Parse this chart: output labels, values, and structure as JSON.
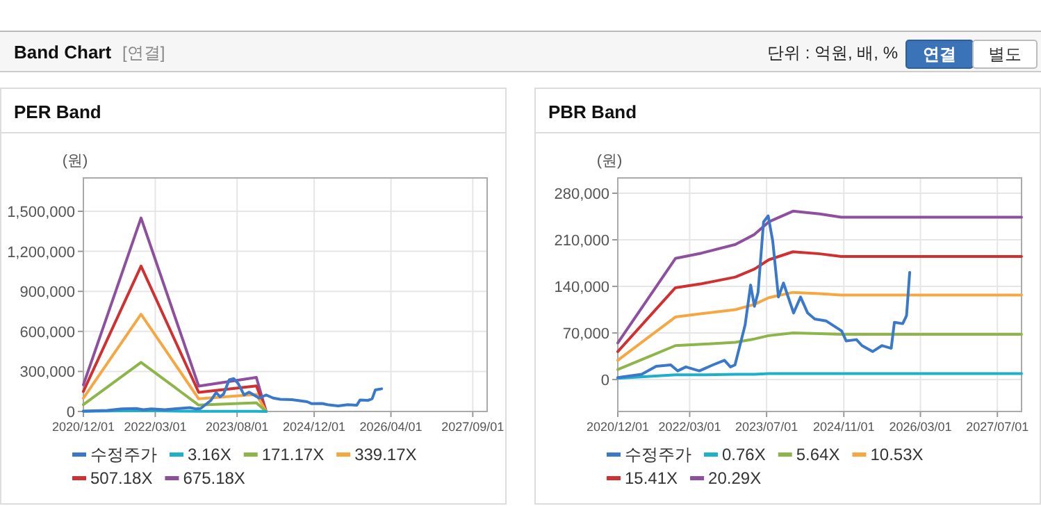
{
  "chart_data": [
    {
      "type": "other",
      "title": "Band Chart",
      "annotations": [
        "[연결]",
        "단위 : 억원, 배, %",
        "연결",
        "별도"
      ]
    },
    {
      "type": "line",
      "title": "PER Band",
      "ylabel": "(원)",
      "grid": true,
      "legend": "bottom",
      "line_style": "solid",
      "xlim": [
        "2020-12-01",
        "2027-12-01"
      ],
      "xticks": [
        {
          "value": "2020-12-01",
          "label": "2020/12/01"
        },
        {
          "value": "2022-03-01",
          "label": "2022/03/01"
        },
        {
          "value": "2023-08-01",
          "label": "2023/08/01"
        },
        {
          "value": "2024-12-01",
          "label": "2024/12/01"
        },
        {
          "value": "2026-04-01",
          "label": "2026/04/01"
        },
        {
          "value": "2027-09-01",
          "label": "2027/09/01"
        }
      ],
      "ylim": [
        0,
        1750000
      ],
      "yticks": [
        0,
        {
          "value": 300000,
          "label": "300,000"
        },
        {
          "value": 600000,
          "label": "600,000"
        },
        {
          "value": 900000,
          "label": "900,000"
        },
        {
          "value": 1200000,
          "label": "1,200,000"
        },
        {
          "value": 1500000,
          "label": "1,500,000"
        }
      ],
      "x": [
        "2020-12-01",
        "2021-12-01",
        "2022-12-01",
        "2023-12-01",
        "2024-02-01"
      ],
      "series": [
        {
          "name": "수정주가",
          "color": "#3a78c9",
          "x": [
            "2020-12-01",
            "2021-05-01",
            "2021-08-01",
            "2021-11-01",
            "2021-12-15",
            "2022-02-05",
            "2022-05-01",
            "2022-07-26",
            "2022-10-07",
            "2022-11-14",
            "2022-12-13",
            "2023-02-15",
            "2023-03-22",
            "2023-04-15",
            "2023-05-08",
            "2023-06-12",
            "2023-07-11",
            "2023-08-09",
            "2023-09-14",
            "2023-10-16",
            "2023-12-19",
            "2024-02-01",
            "2024-03-17",
            "2024-05-01",
            "2024-07-13",
            "2024-10-18",
            "2024-11-16",
            "2025-01-20",
            "2025-02-24",
            "2025-05-02",
            "2025-06-30",
            "2025-08-28",
            "2025-09-17",
            "2025-11-09",
            "2025-12-03",
            "2025-12-23",
            "2026-02-01"
          ],
          "values": [
            3000,
            8000,
            20000,
            22000,
            13000,
            19000,
            13000,
            22000,
            29000,
            19000,
            22000,
            82000,
            142000,
            110000,
            131000,
            237000,
            246000,
            208000,
            124000,
            145000,
            100000,
            124000,
            100000,
            91000,
            88000,
            73000,
            58000,
            60000,
            51000,
            42000,
            51000,
            47000,
            86000,
            84000,
            96000,
            161000,
            170000
          ]
        },
        {
          "name": "3.16X",
          "color": "#1fb0c9",
          "values": [
            900,
            6800,
            900,
            1200,
            0
          ]
        },
        {
          "name": "171.17X",
          "color": "#8db54a",
          "values": [
            51000,
            368000,
            48000,
            65000,
            0
          ]
        },
        {
          "name": "339.17X",
          "color": "#f5a742",
          "values": [
            100000,
            729000,
            95000,
            128000,
            0
          ]
        },
        {
          "name": "507.18X",
          "color": "#d03030",
          "values": [
            150000,
            1089000,
            143000,
            192000,
            0
          ]
        },
        {
          "name": "675.18X",
          "color": "#8e4f9e",
          "values": [
            200000,
            1450000,
            190000,
            255000,
            0
          ]
        }
      ]
    },
    {
      "type": "line",
      "title": "PBR Band",
      "ylabel": "(원)",
      "grid": true,
      "legend": "bottom",
      "line_style": "solid",
      "xlim": [
        "2020-12-01",
        "2027-12-01"
      ],
      "xticks": [
        {
          "value": "2020-12-01",
          "label": "2020/12/01"
        },
        {
          "value": "2022-03-01",
          "label": "2022/03/01"
        },
        {
          "value": "2023-07-01",
          "label": "2023/07/01"
        },
        {
          "value": "2024-11-01",
          "label": "2024/11/01"
        },
        {
          "value": "2026-03-01",
          "label": "2026/03/01"
        },
        {
          "value": "2027-07-01",
          "label": "2027/07/01"
        }
      ],
      "ylim": [
        -48000,
        303000
      ],
      "yticks": [
        0,
        {
          "value": 70000,
          "label": "70,000"
        },
        {
          "value": 140000,
          "label": "140,000"
        },
        {
          "value": 210000,
          "label": "210,000"
        },
        {
          "value": 280000,
          "label": "280,000"
        }
      ],
      "x": [
        "2020-12-01",
        "2021-12-01",
        "2022-05-15",
        "2022-12-15",
        "2023-04-15",
        "2023-07-15",
        "2023-12-15",
        "2024-06-01",
        "2024-10-15",
        "2027-12-01"
      ],
      "series": [
        {
          "name": "수정주가",
          "color": "#3a78c9",
          "x": [
            "2020-12-01",
            "2021-05-01",
            "2021-08-01",
            "2021-11-01",
            "2021-12-15",
            "2022-02-05",
            "2022-05-01",
            "2022-07-26",
            "2022-10-07",
            "2022-11-14",
            "2022-12-13",
            "2023-02-15",
            "2023-03-22",
            "2023-04-15",
            "2023-05-08",
            "2023-06-12",
            "2023-07-11",
            "2023-08-09",
            "2023-09-14",
            "2023-10-16",
            "2023-12-19",
            "2024-02-01",
            "2024-03-17",
            "2024-05-01",
            "2024-07-13",
            "2024-10-18",
            "2024-11-16",
            "2025-01-20",
            "2025-02-24",
            "2025-05-02",
            "2025-06-30",
            "2025-08-28",
            "2025-09-17",
            "2025-11-09",
            "2025-12-03",
            "2025-12-23"
          ],
          "values": [
            3000,
            8000,
            20000,
            22000,
            13000,
            19000,
            13000,
            22000,
            29000,
            19000,
            22000,
            82000,
            142000,
            110000,
            131000,
            237000,
            246000,
            208000,
            124000,
            145000,
            100000,
            124000,
            100000,
            91000,
            88000,
            73000,
            58000,
            60000,
            51000,
            42000,
            51000,
            47000,
            86000,
            84000,
            96000,
            161000
          ]
        },
        {
          "name": "0.76X",
          "color": "#1fb0c9",
          "values": [
            2000,
            7000,
            7000,
            8000,
            8000,
            9000,
            9000,
            9000,
            9000,
            9000
          ]
        },
        {
          "name": "5.64X",
          "color": "#8db54a",
          "values": [
            15000,
            51000,
            53000,
            56000,
            61000,
            66000,
            70000,
            69000,
            68000,
            68000
          ]
        },
        {
          "name": "10.53X",
          "color": "#f5a742",
          "values": [
            29000,
            94000,
            99000,
            105000,
            113000,
            123000,
            131000,
            129000,
            127000,
            127000
          ]
        },
        {
          "name": "15.41X",
          "color": "#d03030",
          "values": [
            42000,
            138000,
            144000,
            154000,
            166000,
            180000,
            192000,
            189000,
            185000,
            185000
          ]
        },
        {
          "name": "20.29X",
          "color": "#8e4f9e",
          "values": [
            55000,
            182000,
            190000,
            203000,
            218000,
            237000,
            253000,
            249000,
            244000,
            244000
          ]
        }
      ]
    }
  ]
}
